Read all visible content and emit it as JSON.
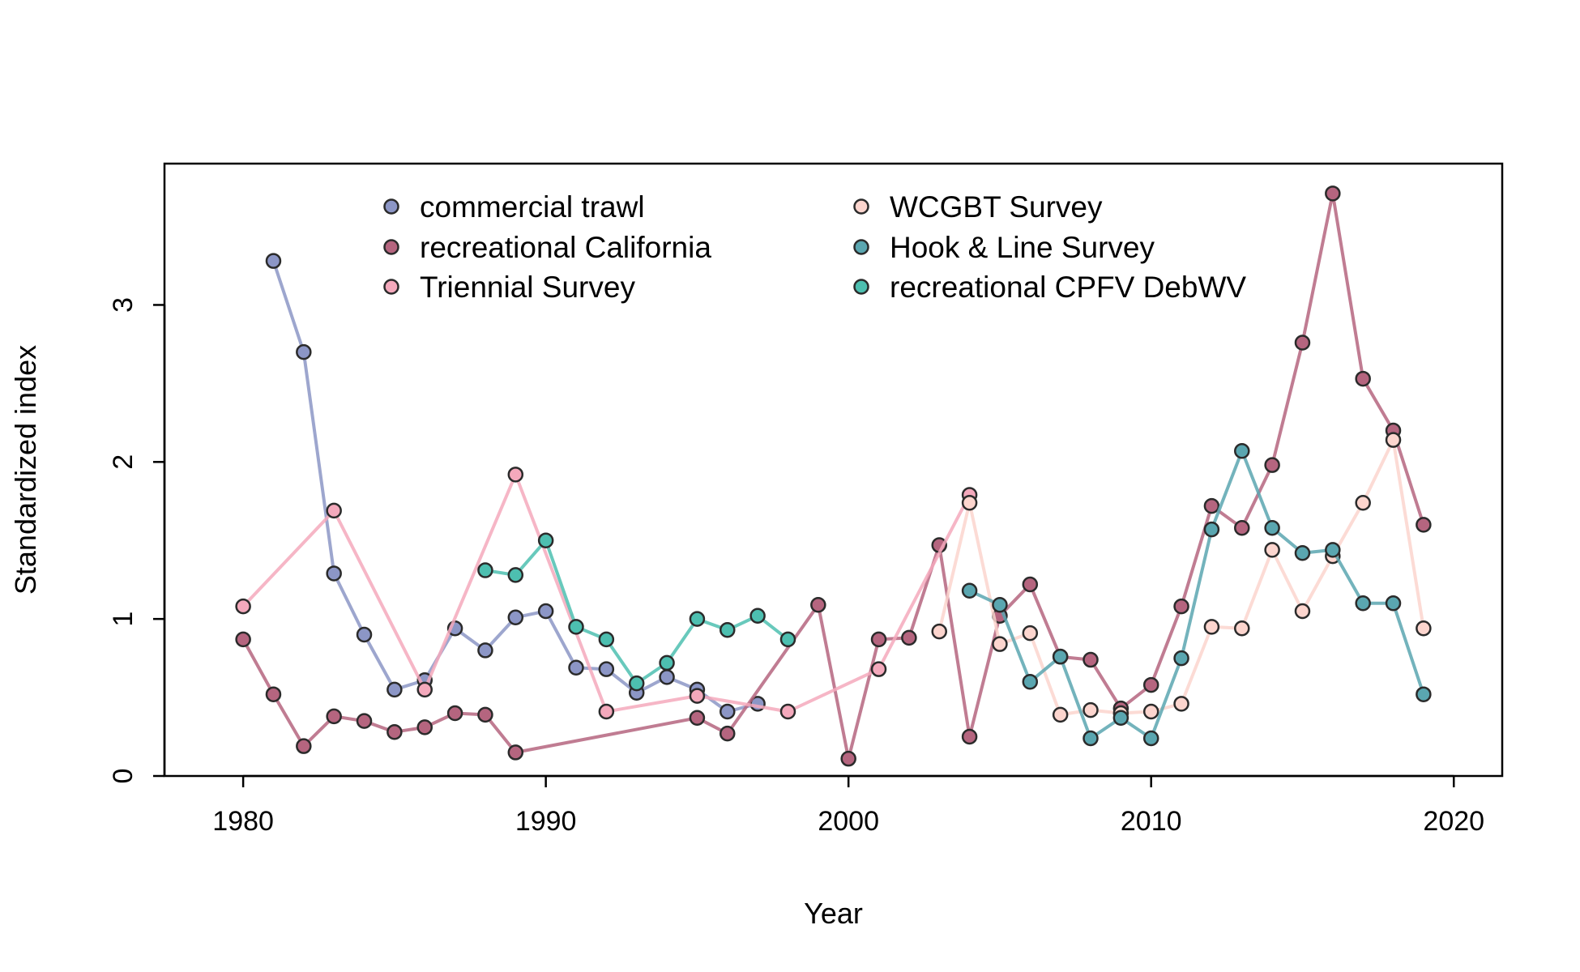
{
  "chart_data": {
    "type": "line",
    "title": "",
    "xlabel": "Year",
    "ylabel": "Standardized index",
    "xlim": [
      1977.4,
      2021.6
    ],
    "ylim": [
      0,
      3.9
    ],
    "xticks": [
      1980,
      1990,
      2000,
      2010,
      2020
    ],
    "yticks": [
      0,
      1,
      2,
      3
    ],
    "grid": false,
    "legend_position": "top",
    "series": [
      {
        "name": "commercial trawl",
        "color": "#8C96C6",
        "x": [
          1981,
          1982,
          1983,
          1984,
          1985,
          1986,
          1987,
          1988,
          1989,
          1990,
          1991,
          1992,
          1993,
          1994,
          1995,
          1996,
          1997
        ],
        "y": [
          3.28,
          2.7,
          1.29,
          0.9,
          0.55,
          0.61,
          0.94,
          0.8,
          1.01,
          1.05,
          0.69,
          0.68,
          0.53,
          0.63,
          0.55,
          0.41,
          0.46
        ]
      },
      {
        "name": "recreational California",
        "color": "#B5657F",
        "x": [
          1980,
          1981,
          1982,
          1983,
          1984,
          1985,
          1986,
          1987,
          1988,
          1989,
          1995,
          1996,
          1999,
          2000,
          2001,
          2002,
          2003,
          2004,
          2005,
          2006,
          2007,
          2008,
          2009,
          2010,
          2011,
          2012,
          2013,
          2014,
          2015,
          2016,
          2017,
          2018,
          2019
        ],
        "y": [
          0.87,
          0.52,
          0.19,
          0.38,
          0.35,
          0.28,
          0.31,
          0.4,
          0.39,
          0.15,
          0.37,
          0.27,
          1.09,
          0.11,
          0.87,
          0.88,
          1.47,
          0.25,
          1.02,
          1.22,
          0.76,
          0.74,
          0.43,
          0.58,
          1.08,
          1.72,
          1.58,
          1.98,
          2.76,
          3.71,
          2.53,
          2.2,
          1.6
        ]
      },
      {
        "name": "Triennial Survey",
        "color": "#F4A9BC",
        "x": [
          1980,
          1983,
          1986,
          1989,
          1992,
          1995,
          1998,
          2001,
          2004
        ],
        "y": [
          1.08,
          1.69,
          0.55,
          1.92,
          0.41,
          0.51,
          0.41,
          0.68,
          1.79
        ]
      },
      {
        "name": "WCGBT Survey",
        "color": "#FCD5CE",
        "x": [
          2003,
          2004,
          2005,
          2006,
          2007,
          2008,
          2009,
          2010,
          2011,
          2012,
          2013,
          2014,
          2015,
          2016,
          2017,
          2018,
          2019
        ],
        "y": [
          0.92,
          1.74,
          0.84,
          0.91,
          0.39,
          0.42,
          0.4,
          0.41,
          0.46,
          0.95,
          0.94,
          1.44,
          1.05,
          1.4,
          1.74,
          2.14,
          0.94
        ]
      },
      {
        "name": "Hook & Line Survey",
        "color": "#5AA6B0",
        "x": [
          2004,
          2005,
          2006,
          2007,
          2008,
          2009,
          2010,
          2011,
          2012,
          2013,
          2014,
          2015,
          2016,
          2017,
          2018,
          2019
        ],
        "y": [
          1.18,
          1.09,
          0.6,
          0.76,
          0.24,
          0.37,
          0.24,
          0.75,
          1.57,
          2.07,
          1.58,
          1.42,
          1.44,
          1.1,
          1.1,
          0.52
        ]
      },
      {
        "name": "recreational CPFV DebWV",
        "color": "#4DBFB0",
        "x": [
          1988,
          1989,
          1990,
          1991,
          1992,
          1993,
          1994,
          1995,
          1996,
          1997,
          1998
        ],
        "y": [
          1.31,
          1.28,
          1.5,
          0.95,
          0.87,
          0.59,
          0.72,
          1.0,
          0.93,
          1.02,
          0.87
        ]
      }
    ]
  }
}
